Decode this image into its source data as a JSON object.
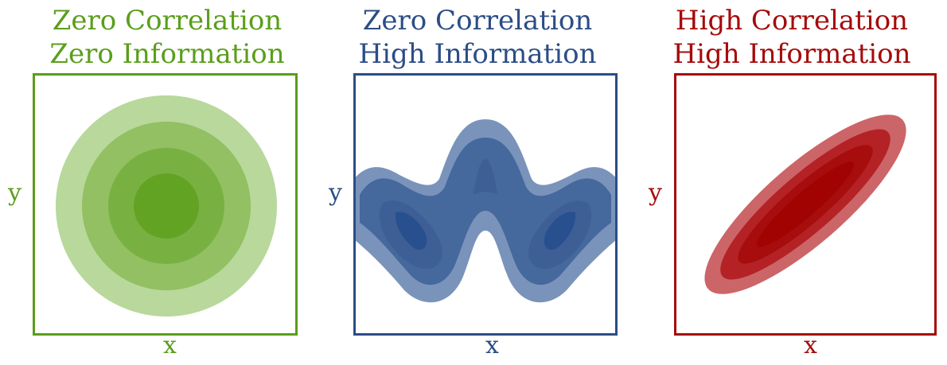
{
  "panels": [
    {
      "title_line1": "Zero Correlation",
      "title_line2": "Zero Information",
      "xlabel": "x",
      "ylabel": "y",
      "color": "#5a9e1a",
      "fills": [
        "#b8d89c",
        "#92c062",
        "#78b142",
        "#62a323"
      ]
    },
    {
      "title_line1": "Zero Correlation",
      "title_line2": "High Information",
      "xlabel": "x",
      "ylabel": "y",
      "color": "#2b4d86",
      "fills": [
        "#7a93bb",
        "#45689d",
        "#3d5f96",
        "#28508f"
      ]
    },
    {
      "title_line1": "High Correlation",
      "title_line2": "High Information",
      "xlabel": "x",
      "ylabel": "y",
      "color": "#a50a0a",
      "fills": [
        "#cc6568",
        "#b42226",
        "#a70d0d",
        "#a10303"
      ]
    }
  ]
}
